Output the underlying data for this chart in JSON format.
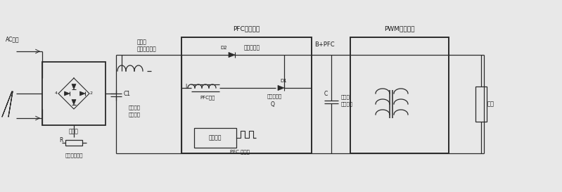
{
  "bg_color": "#e8e8e8",
  "title": "PFC开关电源",
  "pwm_title": "PWM开关电源",
  "labels": {
    "ac_input": "AC输入",
    "rectifier": "整流器",
    "current_detect": "电流检测电队",
    "after_rect": "整流后",
    "pulse_wave": "脉动馔头波形",
    "C1": "C1",
    "hf_bypass": "高频旁路",
    "filter_cap": "滤波电容",
    "D2": "D2",
    "protect_diode": "保护二极管",
    "L": "L",
    "pfc_inductor": "PFC电感",
    "D1": "D1",
    "boost_diode": "升压二极管",
    "Q": "Q",
    "driver_chip": "驱动芯片",
    "pfc_switch": "PFC 开关管",
    "B_PFC": "B+PFC",
    "C": "C",
    "large_cap": "大容量",
    "filter_cap2": "滤波电容",
    "load": "负载",
    "R": "R",
    "n4": "4",
    "n2": "2"
  },
  "line_color": "#2a2a2a",
  "text_color": "#1a1a1a"
}
